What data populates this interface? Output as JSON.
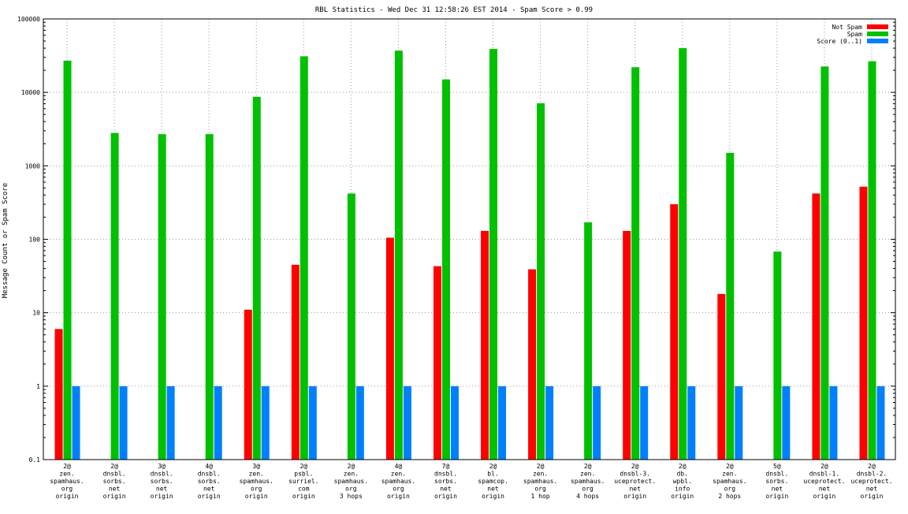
{
  "chart_data": {
    "type": "bar",
    "title": "RBL Statistics - Wed Dec 31 12:58:26 EST 2014 - Spam Score > 0.99",
    "xlabel": "",
    "ylabel": "Message Count or Spam Score",
    "yscale": "log",
    "ylim": [
      0.1,
      100000
    ],
    "ytick_labels": [
      "0.1",
      "1",
      "10",
      "100",
      "1000",
      "10000",
      "100000"
    ],
    "grid": true,
    "legend_position": "top-right",
    "categories": [
      [
        "2@",
        "zen.",
        "spamhaus.",
        "org",
        "origin"
      ],
      [
        "2@",
        "dnsbl.",
        "sorbs.",
        "net",
        "origin"
      ],
      [
        "3@",
        "dnsbl.",
        "sorbs.",
        "net",
        "origin"
      ],
      [
        "4@",
        "dnsbl.",
        "sorbs.",
        "net",
        "origin"
      ],
      [
        "3@",
        "zen.",
        "spamhaus.",
        "org",
        "origin"
      ],
      [
        "2@",
        "psbl.",
        "surriel.",
        "com",
        "origin"
      ],
      [
        "2@",
        "zen.",
        "spamhaus.",
        "org",
        "3 hops"
      ],
      [
        "4@",
        "zen.",
        "spamhaus.",
        "org",
        "origin"
      ],
      [
        "7@",
        "dnsbl.",
        "sorbs.",
        "net",
        "origin"
      ],
      [
        "2@",
        "bl.",
        "spamcop.",
        "net",
        "origin"
      ],
      [
        "2@",
        "zen.",
        "spamhaus.",
        "org",
        "1 hop"
      ],
      [
        "2@",
        "zen.",
        "spamhaus.",
        "org",
        "4 hops"
      ],
      [
        "2@",
        "dnsbl-3.",
        "uceprotect.",
        "net",
        "origin"
      ],
      [
        "2@",
        "db.",
        "wpbl.",
        "info",
        "origin"
      ],
      [
        "2@",
        "zen.",
        "spamhaus.",
        "org",
        "2 hops"
      ],
      [
        "5@",
        "dnsbl.",
        "sorbs.",
        "net",
        "origin"
      ],
      [
        "2@",
        "dnsbl-1.",
        "uceprotect.",
        "net",
        "origin"
      ],
      [
        "2@",
        "dnsbl-2.",
        "uceprotect.",
        "net",
        "origin"
      ]
    ],
    "series": [
      {
        "name": "Not Spam",
        "color": "#ff0000",
        "values": [
          6,
          null,
          null,
          null,
          11,
          45,
          null,
          105,
          43,
          130,
          39,
          null,
          130,
          300,
          18,
          null,
          420,
          520
        ]
      },
      {
        "name": "Spam",
        "color": "#00c000",
        "values": [
          27000,
          2800,
          2700,
          2700,
          8700,
          31000,
          420,
          37000,
          15000,
          39000,
          7100,
          170,
          22000,
          40000,
          1500,
          68,
          22500,
          26500
        ]
      },
      {
        "name": "Score (0..1)",
        "color": "#0080ff",
        "values": [
          1,
          1,
          1,
          1,
          1,
          1,
          1,
          1,
          1,
          1,
          1,
          1,
          1,
          1,
          1,
          1,
          1,
          1
        ]
      }
    ]
  }
}
